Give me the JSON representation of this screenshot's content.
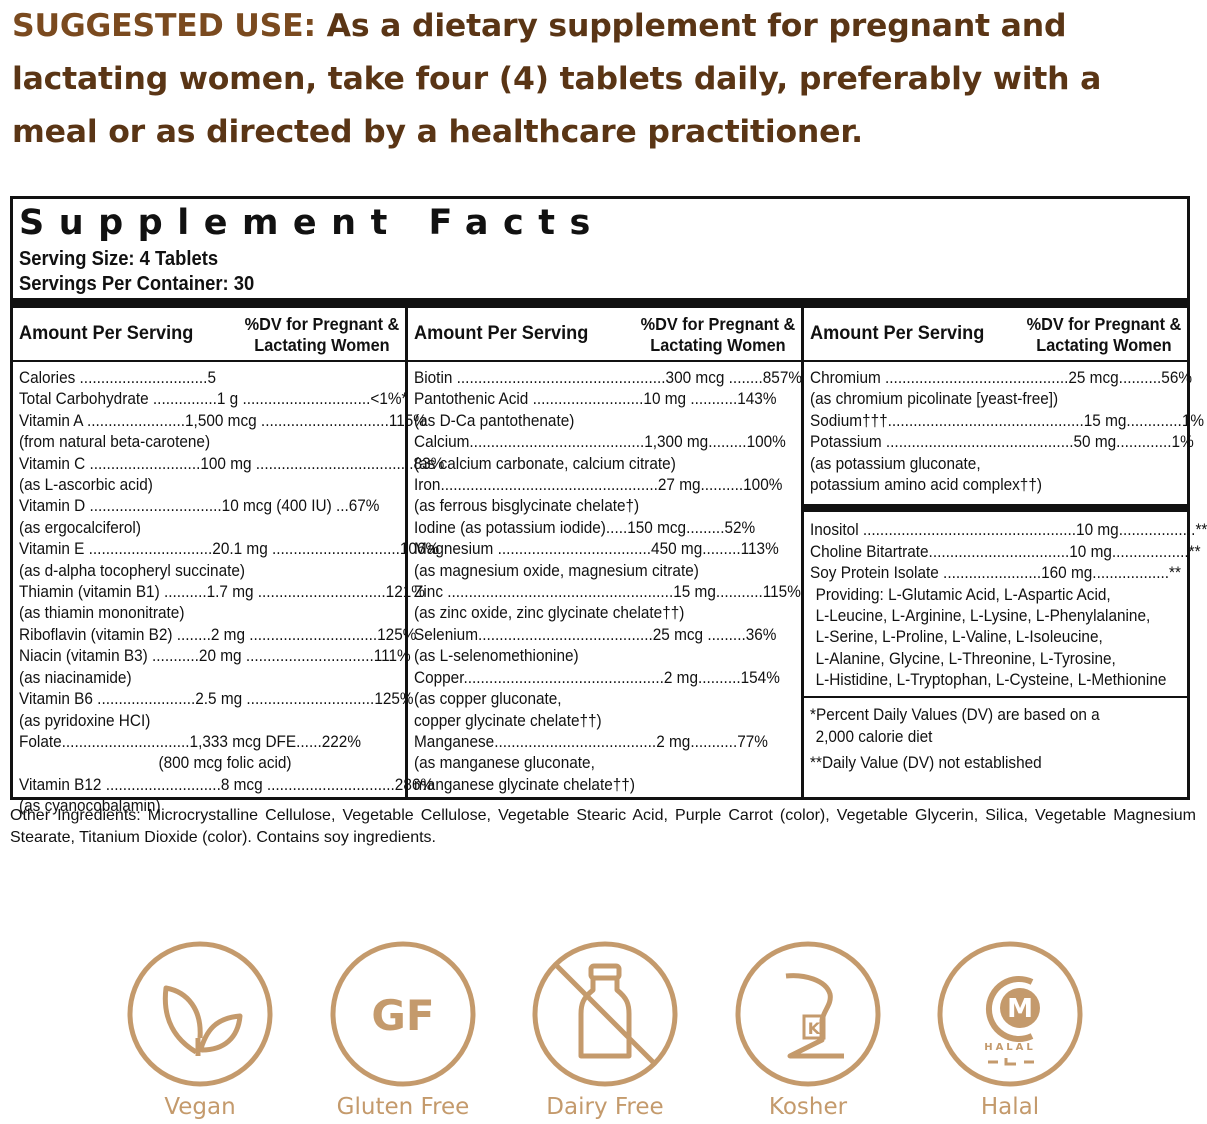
{
  "suggested": {
    "lead": "SUGGESTED USE:",
    "text": " As a dietary supplement for pregnant and lactating women, take four (4) tablets daily, preferably with a meal or as directed by a healthcare practitioner."
  },
  "facts": {
    "title": "Supplement Facts",
    "serving_size": "Serving Size: 4 Tablets",
    "servings_per_container": "Servings Per Container: 30",
    "col_amount": "Amount Per Serving",
    "col_dv_line1": "%DV for Pregnant &",
    "col_dv_line2": "Lactating Women",
    "col1": [
      "Calories ..............................5",
      "Total Carbohydrate ...............1 g ..............................<1%*",
      "Vitamin A .......................1,500 mcg ..............................115%",
      "(from natural beta-carotene)",
      "Vitamin C ..........................100 mg .....................................83%",
      "(as L-ascorbic acid)",
      "Vitamin D ...............................10 mcg (400 IU) ...67%",
      "(as ergocalciferol)",
      "Vitamin E .............................20.1 mg ..............................106%",
      "(as d-alpha tocopheryl succinate)",
      "Thiamin (vitamin B1) ..........1.7 mg ..............................121%",
      "(as thiamin mononitrate)",
      "Riboflavin (vitamin B2) ........2 mg ..............................125%",
      "Niacin (vitamin B3) ...........20 mg ..............................111%",
      "(as niacinamide)",
      "Vitamin B6 .......................2.5 mg ..............................125%",
      "(as pyridoxine HCI)",
      "Folate..............................1,333 mcg DFE......222%",
      "(800 mcg folic acid)",
      "Vitamin B12 ...........................8 mcg ..............................286%",
      "(as cyanocobalamin)"
    ],
    "col2": [
      "Biotin .................................................300 mcg ........857%",
      "Pantothenic Acid ..........................10 mg ...........143%",
      "(as D-Ca pantothenate)",
      "Calcium.........................................1,300 mg.........100%",
      "(as calcium carbonate, calcium citrate)",
      "Iron...................................................27 mg..........100%",
      "(as ferrous bisglycinate chelate†)",
      "Iodine (as potassium iodide).....150 mcg.........52%",
      "Magnesium ....................................450 mg.........113%",
      "(as magnesium oxide, magnesium citrate)",
      "Zinc .....................................................15 mg...........115%",
      "(as zinc oxide, zinc glycinate chelate††)",
      "Selenium.........................................25 mcg .........36%",
      "(as L-selenomethionine)",
      "Copper...............................................2 mg..........154%",
      "(as copper gluconate,",
      "copper glycinate chelate††)",
      "Manganese......................................2 mg...........77%",
      "(as manganese gluconate,",
      "manganese glycinate chelate††)"
    ],
    "col3_top": [
      "Chromium ...........................................25 mcg..........56%",
      "(as chromium picolinate [yeast-free])",
      "Sodium†††..............................................15 mg.............1%",
      "Potassium ............................................50 mg.............1%",
      "(as potassium gluconate,",
      "potassium amino acid complex††)"
    ],
    "col3_bottom": [
      "Inositol ..................................................10 mg..................**",
      "Choline Bitartrate.................................10 mg..................**",
      "Soy Protein Isolate .......................160 mg..................**",
      "Providing: L-Glutamic Acid, L-Aspartic Acid,",
      "L-Leucine, L-Arginine, L-Lysine, L-Phenylalanine,",
      "L-Serine, L-Proline, L-Valine, L-Isoleucine,",
      "L-Alanine, Glycine, L-Threonine, L-Tyrosine,",
      "L-Histidine, L-Tryptophan, L-Cysteine, L-Methionine"
    ],
    "note1_line1": "*Percent Daily Values (DV) are based on a",
    "note1_line2": "2,000 calorie diet",
    "note2": "**Daily Value (DV) not established"
  },
  "other_ingredients": "Other Ingredients: Microcrystalline Cellulose, Vegetable Cellulose, Vegetable Stearic Acid, Purple Carrot (color), Vegetable Glycerin, Silica, Vegetable Magnesium Stearate, Titanium Dioxide (color). Contains soy ingredients.",
  "badges": {
    "accent": "#c49a6c",
    "items": [
      {
        "label": "Vegan",
        "icon": "leaf-icon"
      },
      {
        "label": "Gluten Free",
        "icon": "gf-icon",
        "glyph": "GF"
      },
      {
        "label": "Dairy Free",
        "icon": "milk-bottle-crossed-icon"
      },
      {
        "label": "Kosher",
        "icon": "kosher-icon",
        "glyph": "K"
      },
      {
        "label": "Halal",
        "icon": "halal-icon",
        "glyph": "M",
        "sub": "HALAL"
      }
    ]
  }
}
